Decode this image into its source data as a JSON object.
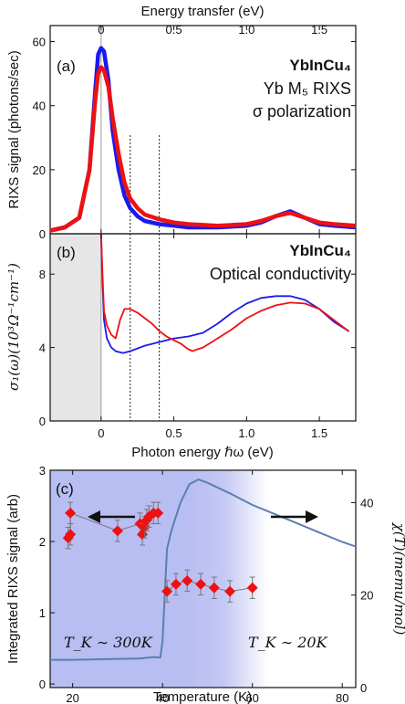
{
  "figure": {
    "top_axis_label": "Energy transfer (eV)",
    "bottom_axis_label": "Photon energy ℏω (eV)",
    "panel_a": {
      "label": "(a)",
      "material": "YbInCu₄",
      "line1": "Yb M₅ RIXS",
      "line2": "σ polarization",
      "ylabel": "RIXS signal (photons/sec)"
    },
    "panel_b": {
      "label": "(b)",
      "material": "YbInCu₄",
      "line1": "Optical conductivity",
      "ylabel": "σ₁(ω)(10³Ω⁻¹cm⁻¹)"
    },
    "panel_c": {
      "label": "(c)",
      "ylabel_left": "Integrated RIXS signal (arb)",
      "ylabel_right": "χ(T)(memu/mol)",
      "xlabel": "Temperature (K)",
      "ann_left": "T_K ∼ 300K",
      "ann_right": "T_K ∼ 20K"
    }
  },
  "colors": {
    "blue": "#1a1aee",
    "red": "#ee1111",
    "chi": "#5b7fb0",
    "shade_gray": "#e6e6e6",
    "shade_blue": "#b8bdf2"
  },
  "chart_data": [
    {
      "id": "a",
      "type": "line",
      "title": "",
      "xlabel": "Energy transfer (eV)",
      "ylabel": "RIXS signal (photons/sec)",
      "xlim": [
        -0.35,
        1.75
      ],
      "ylim": [
        0,
        65
      ],
      "xticks": [
        0,
        0.5,
        1.0,
        1.5
      ],
      "xtick_labels": [
        "0",
        "0.5",
        "1.0",
        "1.5"
      ],
      "yticks": [
        0,
        20,
        40,
        60
      ],
      "vlines": [
        0,
        0.2,
        0.4
      ],
      "series": [
        {
          "color": "blue",
          "x": [
            -0.35,
            -0.25,
            -0.15,
            -0.08,
            -0.04,
            -0.02,
            0.0,
            0.02,
            0.05,
            0.08,
            0.12,
            0.16,
            0.2,
            0.25,
            0.3,
            0.4,
            0.5,
            0.6,
            0.8,
            1.0,
            1.1,
            1.2,
            1.3,
            1.4,
            1.5,
            1.6,
            1.75
          ],
          "y": [
            1,
            2,
            5,
            20,
            45,
            56,
            58,
            57,
            48,
            32,
            20,
            12,
            8,
            5.5,
            4,
            3,
            2.5,
            2,
            2,
            2.5,
            3.5,
            5.5,
            7,
            5,
            3,
            2.5,
            2
          ]
        },
        {
          "color": "red",
          "x": [
            -0.35,
            -0.25,
            -0.15,
            -0.08,
            -0.04,
            -0.02,
            0.0,
            0.02,
            0.05,
            0.08,
            0.12,
            0.16,
            0.2,
            0.25,
            0.3,
            0.4,
            0.5,
            0.6,
            0.8,
            1.0,
            1.1,
            1.2,
            1.3,
            1.4,
            1.5,
            1.6,
            1.75
          ],
          "y": [
            1,
            2,
            5,
            20,
            42,
            50,
            52,
            51,
            46,
            36,
            25,
            16,
            11,
            8,
            6,
            4.5,
            3.5,
            3,
            2.5,
            3,
            4,
            5.5,
            6.5,
            5,
            3.5,
            3,
            2.5
          ]
        }
      ]
    },
    {
      "id": "b",
      "type": "line",
      "title": "",
      "xlabel": "Photon energy ℏω (eV)",
      "ylabel": "σ₁(ω)(10³Ω⁻¹cm⁻¹)",
      "xlim": [
        -0.35,
        1.75
      ],
      "ylim": [
        0,
        10.2
      ],
      "xticks": [
        0,
        0.5,
        1.0,
        1.5
      ],
      "xtick_labels": [
        "0",
        "0.5",
        "1.0",
        "1.5"
      ],
      "yticks": [
        0,
        4,
        8
      ],
      "shaded_xrange": [
        -0.35,
        0.0
      ],
      "vlines": [
        0,
        0.2,
        0.4
      ],
      "series": [
        {
          "color": "blue",
          "x": [
            0.0,
            0.01,
            0.02,
            0.04,
            0.07,
            0.1,
            0.15,
            0.2,
            0.3,
            0.4,
            0.5,
            0.6,
            0.7,
            0.8,
            0.9,
            1.0,
            1.1,
            1.2,
            1.3,
            1.4,
            1.5,
            1.6,
            1.7
          ],
          "y": [
            10.2,
            7.5,
            5.5,
            4.5,
            4.0,
            3.8,
            3.7,
            3.8,
            4.1,
            4.3,
            4.5,
            4.6,
            4.8,
            5.3,
            5.9,
            6.4,
            6.7,
            6.8,
            6.8,
            6.6,
            6.1,
            5.4,
            4.9
          ]
        },
        {
          "color": "red",
          "x": [
            0.0,
            0.01,
            0.02,
            0.04,
            0.07,
            0.1,
            0.13,
            0.16,
            0.2,
            0.25,
            0.3,
            0.35,
            0.4,
            0.45,
            0.5,
            0.55,
            0.6,
            0.63,
            0.66,
            0.7,
            0.8,
            0.9,
            1.0,
            1.1,
            1.2,
            1.3,
            1.4,
            1.5,
            1.6,
            1.7
          ],
          "y": [
            10.2,
            8.0,
            6.0,
            5.2,
            4.7,
            4.5,
            5.5,
            6.1,
            6.1,
            5.9,
            5.6,
            5.3,
            4.9,
            4.6,
            4.4,
            4.2,
            3.9,
            3.8,
            3.9,
            4.0,
            4.5,
            5.0,
            5.6,
            6.0,
            6.3,
            6.45,
            6.4,
            6.1,
            5.5,
            4.9
          ]
        }
      ]
    },
    {
      "id": "c",
      "type": "scatter",
      "title": "",
      "xlabel": "Temperature (K)",
      "ylabel": "Integrated RIXS signal (arb)",
      "ylabel_right": "χ(T)(memu/mol)",
      "xlim": [
        15,
        83
      ],
      "ylim": [
        -0.05,
        3.0
      ],
      "ylim_right": [
        0,
        47
      ],
      "xticks": [
        20,
        40,
        60,
        80
      ],
      "yticks": [
        0,
        1,
        2,
        3
      ],
      "yticks_right": [
        0,
        20,
        40
      ],
      "series": [
        {
          "name": "RIXS",
          "color": "red",
          "marker": "diamond",
          "x": [
            19,
            19.5,
            19.5,
            30,
            35,
            35.5,
            36,
            36.5,
            37,
            38,
            39,
            41,
            43,
            45.5,
            48.5,
            51.5,
            55,
            60
          ],
          "y": [
            2.05,
            2.1,
            2.4,
            2.15,
            2.25,
            2.1,
            2.2,
            2.3,
            2.35,
            2.4,
            2.4,
            1.3,
            1.4,
            1.45,
            1.4,
            1.35,
            1.3,
            1.35
          ],
          "err": [
            0.15,
            0.15,
            0.15,
            0.15,
            0.15,
            0.15,
            0.15,
            0.15,
            0.15,
            0.15,
            0.15,
            0.15,
            0.15,
            0.15,
            0.15,
            0.15,
            0.15,
            0.15
          ]
        },
        {
          "name": "chi",
          "color": "chi",
          "axis": "right",
          "x": [
            15,
            20,
            25,
            30,
            35,
            38,
            39.5,
            40,
            40.5,
            41,
            42,
            44,
            46,
            48,
            50,
            55,
            60,
            65,
            70,
            75,
            80,
            83
          ],
          "y": [
            6,
            6,
            6.1,
            6.2,
            6.3,
            6.6,
            6.5,
            10,
            20,
            30,
            34,
            40,
            44,
            45,
            44.3,
            42,
            39.5,
            37.5,
            35.5,
            33.5,
            31.5,
            30.5
          ]
        }
      ]
    }
  ]
}
